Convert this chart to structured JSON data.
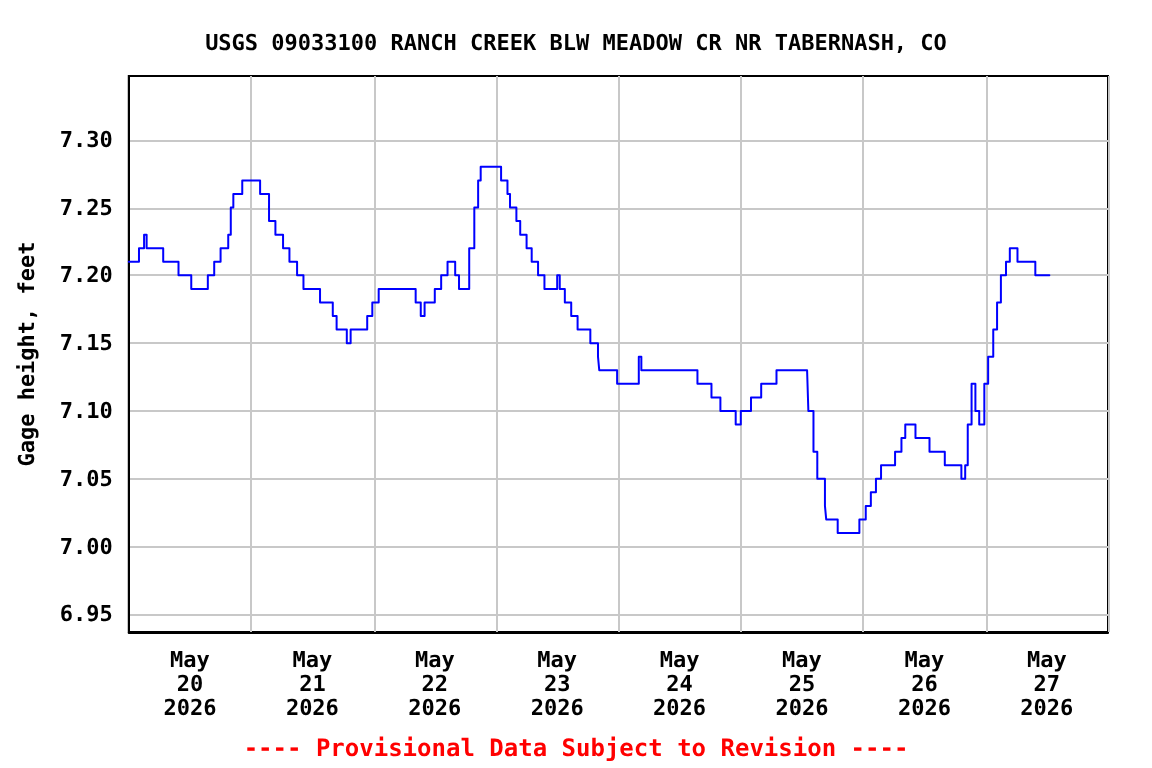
{
  "chart_data": {
    "type": "step",
    "title": "USGS 09033100 RANCH CREEK BLW MEADOW CR NR TABERNASH, CO",
    "ylabel": "Gage height, feet",
    "annotations": [
      "---- Provisional Data Subject to Revision ----"
    ],
    "xlim": [
      "2026-05-20T00:00",
      "2026-05-28T00:00"
    ],
    "xticks": [
      {
        "value": "2026-05-20T00:00",
        "label": null
      },
      {
        "value": "2026-05-20T12:00",
        "label": "May 20 2026"
      },
      {
        "value": "2026-05-21T00:00",
        "label": null
      },
      {
        "value": "2026-05-21T12:00",
        "label": "May 21 2026"
      },
      {
        "value": "2026-05-22T00:00",
        "label": null
      },
      {
        "value": "2026-05-22T12:00",
        "label": "May 22 2026"
      },
      {
        "value": "2026-05-23T00:00",
        "label": null
      },
      {
        "value": "2026-05-23T12:00",
        "label": "May 23 2026"
      },
      {
        "value": "2026-05-24T00:00",
        "label": null
      },
      {
        "value": "2026-05-24T12:00",
        "label": "May 24 2026"
      },
      {
        "value": "2026-05-25T00:00",
        "label": null
      },
      {
        "value": "2026-05-25T12:00",
        "label": "May 25 2026"
      },
      {
        "value": "2026-05-26T00:00",
        "label": null
      },
      {
        "value": "2026-05-26T12:00",
        "label": "May 26 2026"
      },
      {
        "value": "2026-05-27T00:00",
        "label": null
      },
      {
        "value": "2026-05-27T12:00",
        "label": "May 27 2026"
      },
      {
        "value": "2026-05-28T00:00",
        "label": null
      }
    ],
    "ylim": [
      6.937,
      7.347
    ],
    "yticks": [
      {
        "value": 6.95,
        "label": "6.95"
      },
      {
        "value": 7,
        "label": "7.00"
      },
      {
        "value": 7.05,
        "label": "7.05"
      },
      {
        "value": 7.1,
        "label": "7.10"
      },
      {
        "value": 7.15,
        "label": "7.15"
      },
      {
        "value": 7.2,
        "label": "7.20"
      },
      {
        "value": 7.25,
        "label": "7.25"
      },
      {
        "value": 7.3,
        "label": "7.30"
      }
    ],
    "grid": true,
    "marker": "none",
    "line_style": "solid",
    "series": [
      {
        "color": "#0000ff",
        "x": [
          "2026-05-20T00:00",
          "2026-05-20T02:00",
          "2026-05-20T03:00",
          "2026-05-20T03:30",
          "2026-05-20T06:45",
          "2026-05-20T09:45",
          "2026-05-20T12:15",
          "2026-05-20T15:30",
          "2026-05-20T16:45",
          "2026-05-20T18:00",
          "2026-05-20T19:30",
          "2026-05-20T20:00",
          "2026-05-20T20:30",
          "2026-05-20T22:15",
          "2026-05-21T01:15",
          "2026-05-21T01:45",
          "2026-05-21T03:30",
          "2026-05-21T04:45",
          "2026-05-21T06:15",
          "2026-05-21T07:30",
          "2026-05-21T09:00",
          "2026-05-21T10:15",
          "2026-05-21T13:30",
          "2026-05-21T16:00",
          "2026-05-21T16:45",
          "2026-05-21T18:45",
          "2026-05-21T19:30",
          "2026-05-21T22:45",
          "2026-05-21T23:45",
          "2026-05-22T01:00",
          "2026-05-22T07:30",
          "2026-05-22T08:15",
          "2026-05-22T09:15",
          "2026-05-22T10:00",
          "2026-05-22T12:00",
          "2026-05-22T13:15",
          "2026-05-22T14:30",
          "2026-05-22T16:00",
          "2026-05-22T16:45",
          "2026-05-22T18:15",
          "2026-05-22T18:45",
          "2026-05-22T19:45",
          "2026-05-22T20:30",
          "2026-05-22T21:00",
          "2026-05-23T00:15",
          "2026-05-23T01:00",
          "2026-05-23T02:15",
          "2026-05-23T02:45",
          "2026-05-23T04:00",
          "2026-05-23T04:45",
          "2026-05-23T06:00",
          "2026-05-23T07:00",
          "2026-05-23T08:15",
          "2026-05-23T09:30",
          "2026-05-23T12:00",
          "2026-05-23T12:30",
          "2026-05-23T13:30",
          "2026-05-23T14:45",
          "2026-05-23T16:00",
          "2026-05-23T18:30",
          "2026-05-23T20:00",
          "2026-05-23T20:15",
          "2026-05-23T23:45",
          "2026-05-24T04:00",
          "2026-05-24T04:30",
          "2026-05-24T15:30",
          "2026-05-24T18:15",
          "2026-05-24T20:00",
          "2026-05-24T23:00",
          "2026-05-25T00:00",
          "2026-05-25T02:00",
          "2026-05-25T04:00",
          "2026-05-25T07:00",
          "2026-05-25T09:00",
          "2026-05-25T13:00",
          "2026-05-25T13:15",
          "2026-05-25T14:15",
          "2026-05-25T15:00",
          "2026-05-25T16:30",
          "2026-05-25T16:45",
          "2026-05-25T19:00",
          "2026-05-25T22:45",
          "2026-05-25T23:15",
          "2026-05-26T00:30",
          "2026-05-26T01:30",
          "2026-05-26T02:30",
          "2026-05-26T03:30",
          "2026-05-26T06:15",
          "2026-05-26T07:30",
          "2026-05-26T08:15",
          "2026-05-26T10:15",
          "2026-05-26T13:00",
          "2026-05-26T16:00",
          "2026-05-26T19:15",
          "2026-05-26T20:00",
          "2026-05-26T20:30",
          "2026-05-26T21:15",
          "2026-05-26T22:00",
          "2026-05-26T22:45",
          "2026-05-26T23:45",
          "2026-05-27T00:30",
          "2026-05-27T01:30",
          "2026-05-27T02:15",
          "2026-05-27T03:00",
          "2026-05-27T04:00",
          "2026-05-27T04:45",
          "2026-05-27T06:15",
          "2026-05-27T09:45",
          "2026-05-27T12:30"
        ],
        "values": [
          7.21,
          7.22,
          7.23,
          7.22,
          7.21,
          7.2,
          7.19,
          7.2,
          7.21,
          7.22,
          7.23,
          7.25,
          7.26,
          7.27,
          7.27,
          7.26,
          7.24,
          7.23,
          7.22,
          7.21,
          7.2,
          7.19,
          7.18,
          7.17,
          7.16,
          7.15,
          7.16,
          7.17,
          7.18,
          7.19,
          7.19,
          7.18,
          7.17,
          7.18,
          7.19,
          7.2,
          7.21,
          7.2,
          7.19,
          7.19,
          7.22,
          7.25,
          7.27,
          7.28,
          7.28,
          7.27,
          7.26,
          7.25,
          7.24,
          7.23,
          7.22,
          7.21,
          7.2,
          7.19,
          7.2,
          7.19,
          7.18,
          7.17,
          7.16,
          7.15,
          7.14,
          7.13,
          7.12,
          7.14,
          7.13,
          7.12,
          7.11,
          7.1,
          7.09,
          7.1,
          7.11,
          7.12,
          7.13,
          7.13,
          7.13,
          7.1,
          7.07,
          7.05,
          7.03,
          7.02,
          7.01,
          7.01,
          7.02,
          7.03,
          7.04,
          7.05,
          7.06,
          7.07,
          7.08,
          7.09,
          7.08,
          7.07,
          7.06,
          7.05,
          7.06,
          7.09,
          7.12,
          7.1,
          7.09,
          7.12,
          7.14,
          7.16,
          7.18,
          7.2,
          7.21,
          7.22,
          7.21,
          7.2,
          7.2
        ]
      }
    ]
  }
}
